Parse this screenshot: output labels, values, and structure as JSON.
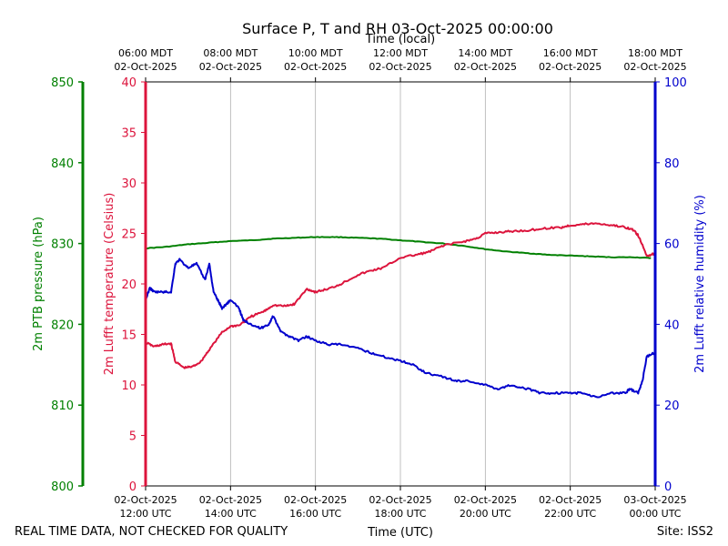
{
  "chart_data": {
    "type": "line",
    "title": "Surface P, T and RH 03-Oct-2025 00:00:00",
    "top_axis_label": "Time (local)",
    "bottom_axis_label": "Time (UTC)",
    "footer_left": "REAL TIME DATA, NOT CHECKED FOR QUALITY",
    "footer_right": "Site: ISS2",
    "x_range_hours_utc": [
      12,
      24
    ],
    "x_ticks": [
      {
        "hour": 12,
        "utc_date": "02-Oct-2025",
        "utc_time": "12:00 UTC",
        "local_time": "06:00 MDT",
        "local_date": "02-Oct-2025"
      },
      {
        "hour": 14,
        "utc_date": "02-Oct-2025",
        "utc_time": "14:00 UTC",
        "local_time": "08:00 MDT",
        "local_date": "02-Oct-2025"
      },
      {
        "hour": 16,
        "utc_date": "02-Oct-2025",
        "utc_time": "16:00 UTC",
        "local_time": "10:00 MDT",
        "local_date": "02-Oct-2025"
      },
      {
        "hour": 18,
        "utc_date": "02-Oct-2025",
        "utc_time": "18:00 UTC",
        "local_time": "12:00 MDT",
        "local_date": "02-Oct-2025"
      },
      {
        "hour": 20,
        "utc_date": "02-Oct-2025",
        "utc_time": "20:00 UTC",
        "local_time": "14:00 MDT",
        "local_date": "02-Oct-2025"
      },
      {
        "hour": 22,
        "utc_date": "02-Oct-2025",
        "utc_time": "22:00 UTC",
        "local_time": "16:00 MDT",
        "local_date": "02-Oct-2025"
      },
      {
        "hour": 24,
        "utc_date": "03-Oct-2025",
        "utc_time": "00:00 UTC",
        "local_time": "18:00 MDT",
        "local_date": "02-Oct-2025"
      }
    ],
    "axes": {
      "pressure": {
        "label": "2m PTB pressure (hPa)",
        "range": [
          800,
          850
        ],
        "ticks": [
          800,
          810,
          820,
          830,
          840,
          850
        ],
        "color": "#008000"
      },
      "temperature": {
        "label": "2m Lufft temperature (Celsius)",
        "range": [
          0,
          40
        ],
        "ticks": [
          0,
          5,
          10,
          15,
          20,
          25,
          30,
          35,
          40
        ],
        "color": "#dc143c"
      },
      "humidity": {
        "label": "2m Lufft relative humidity (%)",
        "range": [
          0,
          100
        ],
        "ticks": [
          0,
          20,
          40,
          60,
          80,
          100
        ],
        "color": "#0000cd"
      }
    },
    "series": [
      {
        "name": "2m PTB pressure (hPa)",
        "axis": "pressure",
        "color": "#008000",
        "x": [
          12.0,
          12.5,
          13.0,
          13.5,
          14.0,
          14.5,
          15.0,
          15.5,
          16.0,
          16.5,
          17.0,
          17.5,
          18.0,
          18.5,
          19.0,
          19.5,
          20.0,
          20.5,
          21.0,
          21.5,
          22.0,
          22.5,
          23.0,
          23.5,
          23.9
        ],
        "y": [
          829.4,
          829.6,
          829.9,
          830.1,
          830.3,
          830.4,
          830.6,
          830.7,
          830.8,
          830.8,
          830.7,
          830.6,
          830.4,
          830.2,
          830.0,
          829.7,
          829.3,
          829.0,
          828.8,
          828.6,
          828.5,
          828.4,
          828.3,
          828.3,
          828.2
        ]
      },
      {
        "name": "2m Lufft temperature (Celsius)",
        "axis": "temperature",
        "color": "#dc143c",
        "x": [
          12.0,
          12.2,
          12.4,
          12.6,
          12.7,
          12.9,
          13.1,
          13.3,
          13.5,
          13.8,
          14.0,
          14.2,
          14.5,
          14.8,
          15.0,
          15.3,
          15.5,
          15.8,
          16.0,
          16.3,
          16.6,
          17.0,
          17.3,
          17.6,
          18.0,
          18.4,
          18.7,
          19.0,
          19.5,
          19.8,
          20.0,
          20.3,
          20.6,
          21.0,
          21.4,
          21.8,
          22.0,
          22.3,
          22.6,
          23.0,
          23.3,
          23.5,
          23.6,
          23.8,
          24.0
        ],
        "y": [
          14.2,
          13.8,
          14.0,
          14.1,
          12.3,
          11.7,
          11.8,
          12.3,
          13.5,
          15.2,
          15.8,
          15.9,
          16.8,
          17.3,
          17.9,
          17.8,
          18.0,
          19.5,
          19.2,
          19.5,
          20.0,
          20.9,
          21.3,
          21.6,
          22.6,
          22.9,
          23.2,
          23.8,
          24.2,
          24.5,
          25.0,
          25.1,
          25.2,
          25.3,
          25.5,
          25.6,
          25.8,
          25.9,
          26.0,
          25.8,
          25.6,
          25.3,
          24.8,
          22.8,
          23.0
        ]
      },
      {
        "name": "2m Lufft relative humidity (%)",
        "axis": "humidity",
        "color": "#0000cd",
        "x": [
          12.0,
          12.1,
          12.2,
          12.4,
          12.6,
          12.7,
          12.8,
          13.0,
          13.2,
          13.4,
          13.5,
          13.6,
          13.7,
          13.8,
          13.9,
          14.0,
          14.2,
          14.3,
          14.5,
          14.7,
          14.9,
          15.0,
          15.2,
          15.4,
          15.6,
          15.8,
          16.0,
          16.3,
          16.6,
          17.0,
          17.3,
          17.6,
          18.0,
          18.3,
          18.6,
          19.0,
          19.3,
          19.6,
          20.0,
          20.3,
          20.6,
          21.0,
          21.3,
          21.6,
          22.0,
          22.3,
          22.6,
          23.0,
          23.3,
          23.4,
          23.6,
          23.7,
          23.8,
          24.0
        ],
        "y": [
          46,
          49,
          48,
          48,
          48,
          55,
          56,
          54,
          55,
          51,
          55,
          48,
          46,
          44,
          45,
          46,
          44,
          41,
          40,
          39,
          40,
          42,
          38,
          37,
          36,
          37,
          36,
          35,
          35,
          34,
          33,
          32,
          31,
          30,
          28,
          27,
          26,
          26,
          25,
          24,
          25,
          24,
          23,
          23,
          23,
          23,
          22,
          23,
          23,
          24,
          23,
          26,
          32,
          33
        ]
      }
    ]
  }
}
